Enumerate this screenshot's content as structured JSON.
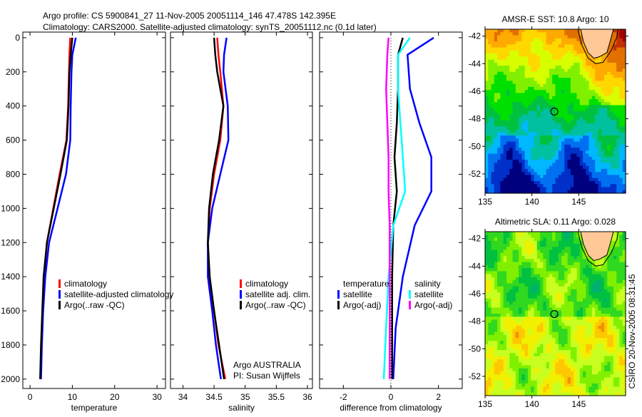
{
  "title": {
    "line1": "Argo profile: CS 5900841_27 11-Nov-2005 20051114_146 47.478S 142.395E",
    "line2": "Climatology: CARS2000. Satellite-adjusted climatology: synTS_20051112.nc (0.1d later)"
  },
  "credit": "CSIRO 20-Nov-2005 08:31:45",
  "colors": {
    "red": "#ff0000",
    "blue": "#0000ff",
    "black": "#000000",
    "cyan": "#00ffff",
    "magenta": "#ff00ff",
    "land": "#ffc896"
  },
  "chart_data": [
    {
      "type": "line",
      "name": "temperature-profile",
      "xlabel": "temperature",
      "xlim": [
        -1.7,
        32
      ],
      "ylim": [
        2055,
        -33
      ],
      "xticks": [
        "0",
        "10",
        "20",
        "30"
      ],
      "xtick_values": [
        0,
        10,
        20,
        30
      ],
      "yticks": [
        "0",
        "200",
        "400",
        "600",
        "800",
        "1000",
        "1200",
        "1400",
        "1600",
        "1800",
        "2000"
      ],
      "ytick_values": [
        0,
        200,
        400,
        600,
        800,
        1000,
        1200,
        1400,
        1600,
        1800,
        2000
      ],
      "depth": [
        0,
        100,
        200,
        400,
        600,
        800,
        1000,
        1200,
        1400,
        1600,
        1800,
        2000
      ],
      "series": [
        {
          "name": "climatology",
          "color": "#ff0000",
          "values": [
            9.5,
            9.3,
            9.2,
            9.0,
            8.6,
            7.0,
            5.5,
            4.0,
            3.3,
            3.0,
            2.7,
            2.5
          ]
        },
        {
          "name": "satellite-adjusted climatology",
          "color": "#0000ff",
          "values": [
            10.8,
            10.0,
            9.8,
            9.6,
            9.5,
            8.5,
            6.5,
            4.5,
            3.6,
            3.1,
            2.8,
            2.6
          ]
        },
        {
          "name": "Argo(..raw -QC)",
          "color": "#000000",
          "values": [
            10.0,
            9.6,
            9.3,
            9.1,
            8.7,
            7.2,
            5.6,
            4.0,
            3.2,
            2.9,
            2.6,
            2.4
          ]
        }
      ],
      "legend": [
        "climatology",
        "satellite-adjusted climatology",
        "Argo(..raw -QC)"
      ],
      "legend_position": "lower-right"
    },
    {
      "type": "line",
      "name": "salinity-profile",
      "xlabel": "salinity",
      "xlim": [
        33.8,
        36.08
      ],
      "ylim": [
        2055,
        -33
      ],
      "xticks": [
        "34",
        "34.5",
        "35",
        "35.5",
        "36"
      ],
      "xtick_values": [
        34,
        34.5,
        35,
        35.5,
        36
      ],
      "depth": [
        0,
        100,
        200,
        400,
        600,
        800,
        1000,
        1200,
        1400,
        1600,
        1800,
        2000
      ],
      "series": [
        {
          "name": "climatology",
          "color": "#ff0000",
          "values": [
            34.55,
            34.57,
            34.6,
            34.65,
            34.6,
            34.5,
            34.43,
            34.4,
            34.42,
            34.5,
            34.57,
            34.68
          ]
        },
        {
          "name": "satellite adj. clim.",
          "color": "#0000ff",
          "values": [
            34.7,
            34.66,
            34.65,
            34.72,
            34.73,
            34.6,
            34.47,
            34.4,
            34.4,
            34.47,
            34.53,
            34.61
          ]
        },
        {
          "name": "Argo(..raw -QC)",
          "color": "#000000",
          "values": [
            34.5,
            34.52,
            34.55,
            34.65,
            34.58,
            34.48,
            34.42,
            34.4,
            34.43,
            34.5,
            34.58,
            34.66
          ]
        }
      ],
      "legend": [
        "climatology",
        "satellite adj. clim.",
        "Argo(..raw -QC)"
      ],
      "legend_position": "lower-right",
      "annotation": [
        "Argo AUSTRALIA",
        "PI: Susan Wijffels"
      ]
    },
    {
      "type": "line",
      "name": "difference-profile",
      "xlabel": "difference from climatology",
      "xlim": [
        -3,
        3
      ],
      "ylim": [
        2055,
        -33
      ],
      "xticks": [
        "-2",
        "0",
        "2"
      ],
      "xtick_values": [
        -2,
        0,
        2
      ],
      "depth": [
        0,
        100,
        300,
        500,
        700,
        900,
        1100,
        1400,
        1700,
        2000
      ],
      "series": [
        {
          "name": "temperature satellite",
          "color": "#0000ff",
          "values": [
            1.8,
            0.7,
            0.8,
            1.2,
            1.7,
            1.7,
            1.0,
            0.5,
            0.2,
            0.1
          ]
        },
        {
          "name": "temperature Argo(-adj)",
          "color": "#000000",
          "values": [
            0.5,
            0.3,
            0.3,
            0.25,
            0.15,
            0.25,
            0.1,
            0.05,
            0.05,
            0.05
          ]
        },
        {
          "name": "salinity satellite",
          "color": "#00ffff",
          "values": [
            0.8,
            0.3,
            0.3,
            0.4,
            0.5,
            0.6,
            0.1,
            -0.1,
            -0.2,
            -0.3
          ]
        },
        {
          "name": "salinity Argo(-adj)",
          "color": "#ff00ff",
          "values": [
            -0.1,
            -0.15,
            -0.2,
            -0.15,
            -0.1,
            -0.1,
            -0.05,
            -0.05,
            -0.05,
            -0.05
          ]
        }
      ],
      "legend": {
        "temperature_header": "temperature",
        "salinity_header": "salinity",
        "items": [
          "satellite",
          "Argo(-adj)",
          "satellite",
          "Argo(-adj)"
        ]
      },
      "legend_position": "center"
    },
    {
      "type": "heatmap",
      "name": "sst-map",
      "title": "AMSR-E SST: 10.8 Argo: 10",
      "xlim": [
        135,
        150
      ],
      "ylim": [
        -53.4,
        -41.5
      ],
      "xticks": [
        "135",
        "140",
        "145"
      ],
      "xtick_values": [
        135,
        140,
        145
      ],
      "yticks": [
        "-42",
        "-44",
        "-46",
        "-48",
        "-50",
        "-52"
      ],
      "ytick_values": [
        -42,
        -44,
        -46,
        -48,
        -50,
        -52
      ],
      "marker": {
        "lon": 142.395,
        "lat": -47.478
      }
    },
    {
      "type": "heatmap",
      "name": "sla-map",
      "title": "Altimetric SLA: 0.11 Argo: 0.028",
      "xlim": [
        135,
        150
      ],
      "ylim": [
        -53.4,
        -41.5
      ],
      "xticks": [
        "135",
        "140",
        "145"
      ],
      "xtick_values": [
        135,
        140,
        145
      ],
      "yticks": [
        "-42",
        "-44",
        "-46",
        "-48",
        "-50",
        "-52"
      ],
      "ytick_values": [
        -42,
        -44,
        -46,
        -48,
        -50,
        -52
      ],
      "marker": {
        "lon": 142.395,
        "lat": -47.478
      }
    }
  ]
}
